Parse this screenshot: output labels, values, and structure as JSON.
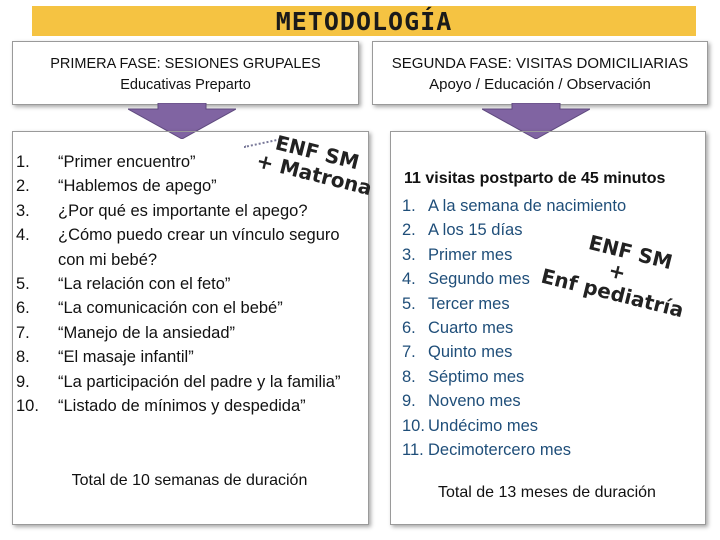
{
  "title": "METODOLOGÍA",
  "phase1": {
    "heading_line1": "PRIMERA FASE: SESIONES GRUPALES",
    "heading_line2": "Educativas Preparto",
    "badge_line1": "ENF SM",
    "badge_line2": "+ Matrona",
    "items": [
      {
        "num": "1.",
        "text": "“Primer encuentro”"
      },
      {
        "num": "2.",
        "text": "“Hablemos de apego”"
      },
      {
        "num": "3.",
        "text": "¿Por qué es importante el apego?"
      },
      {
        "num": "4.",
        "text": "¿Cómo puedo crear un vínculo seguro con mi bebé?"
      },
      {
        "num": "5.",
        "text": "“La relación con el feto”"
      },
      {
        "num": "6.",
        "text": "“La comunicación con el bebé”"
      },
      {
        "num": "7.",
        "text": "“Manejo de la ansiedad”"
      },
      {
        "num": "8.",
        "text": "“El masaje infantil”"
      },
      {
        "num": "9.",
        "text": "“La participación del padre y la familia”"
      },
      {
        "num": "10.",
        "text": "“Listado de mínimos y despedida”"
      }
    ],
    "total": "Total de 10 semanas de duración"
  },
  "phase2": {
    "heading_line1": "SEGUNDA FASE: VISITAS DOMICILIARIAS",
    "heading_line2": "Apoyo / Educación / Observación",
    "subheading": "11 visitas postparto de 45 minutos",
    "badge_line1": "ENF SM",
    "badge_line2": "+",
    "badge_line3": "Enf pediatría",
    "items": [
      {
        "num": "1.",
        "text": "A la semana de nacimiento"
      },
      {
        "num": "2.",
        "text": "A los 15 días"
      },
      {
        "num": "3.",
        "text": "Primer mes"
      },
      {
        "num": "4.",
        "text": "Segundo mes"
      },
      {
        "num": "5.",
        "text": "Tercer mes"
      },
      {
        "num": "6.",
        "text": "Cuarto mes"
      },
      {
        "num": "7.",
        "text": "Quinto mes"
      },
      {
        "num": "8.",
        "text": "Séptimo mes"
      },
      {
        "num": "9.",
        "text": "Noveno mes"
      },
      {
        "num": "10.",
        "text": "Undécimo mes"
      },
      {
        "num": "11.",
        "text": "Decimotercero mes"
      }
    ],
    "total": "Total de 13 meses de duración"
  },
  "colors": {
    "title_bg": "#f5c342",
    "arrow_fill": "#8064a2",
    "list2_text": "#1f4e79"
  }
}
